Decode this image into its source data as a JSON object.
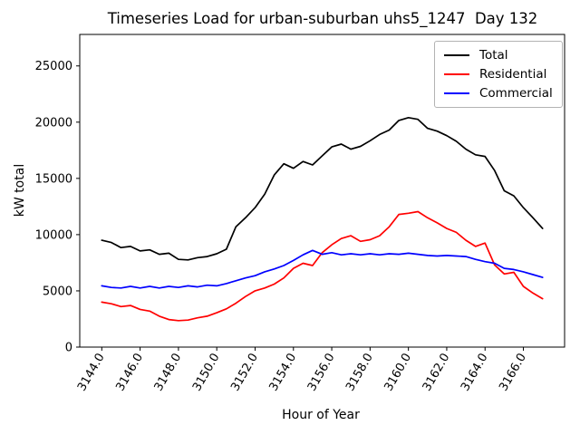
{
  "chart_data": {
    "type": "line",
    "title": "Timeseries Load for urban-suburban uhs5_1247  Day 132",
    "xlabel": "Hour of Year",
    "ylabel": "kW total",
    "grid": false,
    "legend_position": "upper right",
    "xlim": [
      3142.85,
      3168.15
    ],
    "ylim": [
      0,
      27800
    ],
    "xticks": [
      3144,
      3146,
      3148,
      3150,
      3152,
      3154,
      3156,
      3158,
      3160,
      3162,
      3164,
      3166
    ],
    "xtick_labels": [
      "3144.0",
      "3146.0",
      "3148.0",
      "3150.0",
      "3152.0",
      "3154.0",
      "3156.0",
      "3158.0",
      "3160.0",
      "3162.0",
      "3164.0",
      "3166.0"
    ],
    "yticks": [
      0,
      5000,
      10000,
      15000,
      20000,
      25000
    ],
    "ytick_labels": [
      "0",
      "5000",
      "10000",
      "15000",
      "20000",
      "25000"
    ],
    "x": [
      3144.0,
      3144.5,
      3145.0,
      3145.5,
      3146.0,
      3146.5,
      3147.0,
      3147.5,
      3148.0,
      3148.5,
      3149.0,
      3149.5,
      3150.0,
      3150.5,
      3151.0,
      3151.5,
      3152.0,
      3152.5,
      3153.0,
      3153.5,
      3154.0,
      3154.5,
      3155.0,
      3155.5,
      3156.0,
      3156.5,
      3157.0,
      3157.5,
      3158.0,
      3158.5,
      3159.0,
      3159.5,
      3160.0,
      3160.5,
      3161.0,
      3161.5,
      3162.0,
      3162.5,
      3163.0,
      3163.5,
      3164.0,
      3164.5,
      3165.0,
      3165.5,
      3166.0,
      3166.5,
      3167.0
    ],
    "series": [
      {
        "name": "Total",
        "color": "#000000",
        "values": [
          9500,
          9300,
          8850,
          8950,
          8550,
          8650,
          8250,
          8350,
          7800,
          7750,
          7950,
          8050,
          8300,
          8700,
          10700,
          11500,
          12400,
          13600,
          15300,
          16300,
          15900,
          16500,
          16200,
          17000,
          17800,
          18050,
          17600,
          17850,
          18350,
          18900,
          19300,
          20150,
          20400,
          20250,
          19450,
          19200,
          18800,
          18300,
          17600,
          17100,
          16950,
          15700,
          13900,
          13450,
          12400,
          11500,
          10550
        ]
      },
      {
        "name": "Residential",
        "color": "#ff0000",
        "values": [
          4000,
          3850,
          3600,
          3700,
          3350,
          3200,
          2750,
          2450,
          2350,
          2400,
          2600,
          2750,
          3050,
          3400,
          3900,
          4500,
          5000,
          5250,
          5600,
          6150,
          7000,
          7450,
          7250,
          8400,
          9100,
          9650,
          9900,
          9400,
          9550,
          9900,
          10700,
          11800,
          11900,
          12050,
          11500,
          11050,
          10550,
          10200,
          9500,
          8950,
          9250,
          7300,
          6500,
          6650,
          5400,
          4800,
          4300
        ]
      },
      {
        "name": "Commercial",
        "color": "#0000ff",
        "values": [
          5450,
          5300,
          5250,
          5400,
          5250,
          5400,
          5250,
          5400,
          5300,
          5450,
          5350,
          5500,
          5450,
          5650,
          5900,
          6150,
          6350,
          6700,
          6950,
          7250,
          7700,
          8200,
          8600,
          8250,
          8400,
          8200,
          8300,
          8200,
          8300,
          8200,
          8300,
          8250,
          8350,
          8250,
          8150,
          8100,
          8150,
          8100,
          8050,
          7800,
          7600,
          7450,
          7000,
          6900,
          6700,
          6450,
          6200
        ]
      }
    ]
  }
}
